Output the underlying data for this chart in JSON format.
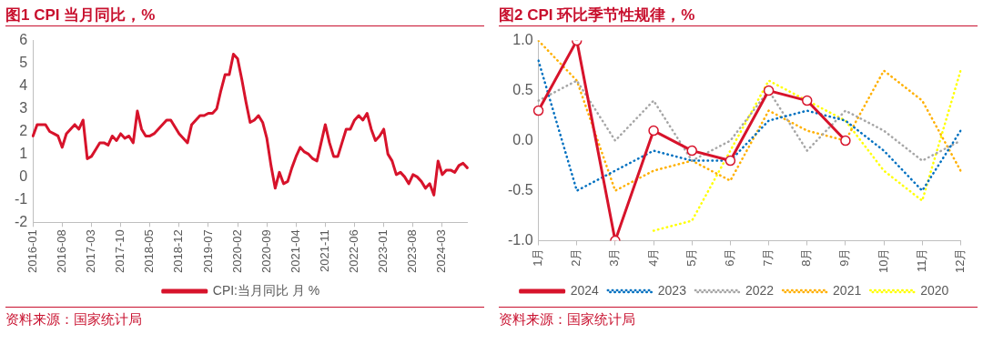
{
  "chart_data": [
    {
      "type": "line",
      "title": "图1  CPI 当月同比，%",
      "categories": [
        "2016-01",
        null,
        null,
        null,
        null,
        null,
        null,
        "2016-08",
        null,
        null,
        null,
        null,
        null,
        null,
        "2017-03",
        null,
        null,
        null,
        null,
        null,
        null,
        "2017-10",
        null,
        null,
        null,
        null,
        null,
        null,
        "2018-05",
        null,
        null,
        null,
        null,
        null,
        null,
        "2018-12",
        null,
        null,
        null,
        null,
        null,
        null,
        "2019-07",
        null,
        null,
        null,
        null,
        null,
        null,
        "2020-02",
        null,
        null,
        null,
        null,
        null,
        null,
        "2020-09",
        null,
        null,
        null,
        null,
        null,
        null,
        "2021-04",
        null,
        null,
        null,
        null,
        null,
        null,
        "2021-11",
        null,
        null,
        null,
        null,
        null,
        null,
        "2022-06",
        null,
        null,
        null,
        null,
        null,
        null,
        "2023-01",
        null,
        null,
        null,
        null,
        null,
        null,
        "2023-08",
        null,
        null,
        null,
        null,
        null,
        null,
        "2024-03",
        null,
        null,
        null,
        null,
        null,
        null
      ],
      "series": [
        {
          "name": "CPI:当月同比 月 %",
          "color": "#d7132b",
          "line_style": "solid",
          "values": [
            1.8,
            2.3,
            2.3,
            2.3,
            2.0,
            1.9,
            1.8,
            1.3,
            1.9,
            2.1,
            2.3,
            2.1,
            2.5,
            0.8,
            0.9,
            1.2,
            1.5,
            1.5,
            1.4,
            1.8,
            1.6,
            1.9,
            1.7,
            1.8,
            1.5,
            2.9,
            2.1,
            1.8,
            1.8,
            1.9,
            2.1,
            2.3,
            2.5,
            2.5,
            2.2,
            1.9,
            1.7,
            1.5,
            2.3,
            2.5,
            2.7,
            2.7,
            2.8,
            2.8,
            3.0,
            3.8,
            4.5,
            4.5,
            5.4,
            5.2,
            4.3,
            3.3,
            2.4,
            2.5,
            2.7,
            2.4,
            1.7,
            0.5,
            -0.5,
            0.2,
            -0.3,
            -0.2,
            0.4,
            0.9,
            1.3,
            1.1,
            1.0,
            0.8,
            0.7,
            1.5,
            2.3,
            1.5,
            0.9,
            0.9,
            1.5,
            2.1,
            2.1,
            2.5,
            2.7,
            2.5,
            2.8,
            2.1,
            1.6,
            1.8,
            2.1,
            1.0,
            0.7,
            0.1,
            0.2,
            0.0,
            -0.3,
            0.1,
            0.0,
            -0.2,
            -0.5,
            -0.3,
            -0.8,
            0.7,
            0.1,
            0.3,
            0.3,
            0.2,
            0.5,
            0.6,
            0.4
          ]
        }
      ],
      "ylim": [
        -2,
        6
      ],
      "yticks": [
        -2,
        -1,
        0,
        1,
        2,
        3,
        4,
        5,
        6
      ],
      "grid": false,
      "legend": "bottom",
      "annotations": [
        "资料来源：国家统计局"
      ]
    },
    {
      "type": "line",
      "title": "图2  CPI 环比季节性规律，%",
      "categories": [
        "1月",
        "2月",
        "3月",
        "4月",
        "5月",
        "6月",
        "7月",
        "8月",
        "9月",
        "10月",
        "11月",
        "12月"
      ],
      "series": [
        {
          "name": "2024",
          "color": "#d7132b",
          "line_style": "solid",
          "marker": "circle",
          "values": [
            0.3,
            1.0,
            -1.0,
            0.1,
            -0.1,
            -0.2,
            0.5,
            0.4,
            0.0,
            null,
            null,
            null
          ]
        },
        {
          "name": "2023",
          "color": "#0070c0",
          "line_style": "dotted",
          "values": [
            0.8,
            -0.5,
            -0.3,
            -0.1,
            -0.2,
            -0.2,
            0.2,
            0.3,
            0.2,
            -0.1,
            -0.5,
            0.1
          ]
        },
        {
          "name": "2022",
          "color": "#a6a6a6",
          "line_style": "dotted",
          "values": [
            0.4,
            0.6,
            0.0,
            0.4,
            -0.2,
            0.0,
            0.5,
            -0.1,
            0.3,
            0.1,
            -0.2,
            0.0
          ]
        },
        {
          "name": "2021",
          "color": "#ffb000",
          "line_style": "dotted",
          "values": [
            1.0,
            0.6,
            -0.5,
            -0.3,
            -0.2,
            -0.4,
            0.3,
            0.1,
            0.0,
            0.7,
            0.4,
            -0.3
          ]
        },
        {
          "name": "2020",
          "color": "#ffff00",
          "line_style": "dotted",
          "values": [
            null,
            null,
            null,
            -0.9,
            -0.8,
            -0.1,
            0.6,
            0.4,
            0.2,
            -0.3,
            -0.6,
            0.7
          ]
        }
      ],
      "ylim": [
        -1,
        1
      ],
      "yticks": [
        {
          "value": -1,
          "label": "-1.0"
        },
        {
          "value": -0.5,
          "label": "-0.5"
        },
        {
          "value": 0,
          "label": "0.0"
        },
        {
          "value": 0.5,
          "label": "0.5"
        },
        {
          "value": 1,
          "label": "1.0"
        }
      ],
      "grid": false,
      "legend": "bottom",
      "annotations": [
        "资料来源：国家统计局"
      ]
    }
  ]
}
